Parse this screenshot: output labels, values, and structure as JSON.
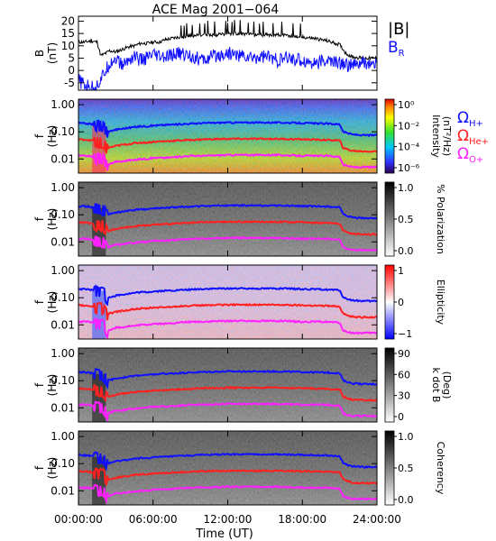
{
  "chart_data": {
    "type": "line",
    "title": "ACE Mag 2001−064",
    "xlabel": "Time (UT)",
    "x_ticks": [
      "00:00:00",
      "06:00:00",
      "12:00:00",
      "18:00:00",
      "24:00:00"
    ],
    "xlim_hours": [
      0,
      24
    ],
    "grid": false,
    "panels": [
      {
        "id": "b",
        "ylabel": [
          "B",
          "(nT)"
        ],
        "yticks": [
          "20",
          "15",
          "10",
          "5",
          "0",
          "-5"
        ],
        "ylim": [
          -8,
          22
        ],
        "legend": [
          {
            "label": "|B|",
            "color": "#000000"
          },
          {
            "label": "B_R",
            "label_main": "B",
            "label_sub": "R",
            "color": "#1010ff"
          }
        ],
        "series": [
          {
            "name": "|B|",
            "color": "#000000",
            "x": [
              0,
              0.5,
              1,
              1.5,
              1.8,
              2.2,
              2.5,
              3,
              3.5,
              4,
              4.5,
              5,
              5.5,
              6,
              6.5,
              7,
              7.5,
              8,
              9,
              10,
              11,
              12,
              13,
              14,
              15,
              16,
              17,
              18,
              19,
              20,
              21,
              21.5,
              22,
              23,
              24
            ],
            "y": [
              11.5,
              11.5,
              12,
              11.5,
              6,
              7,
              8,
              7.5,
              8.5,
              9.5,
              10,
              11,
              11,
              11.5,
              11.5,
              12.5,
              13,
              13.5,
              14,
              14.5,
              14.5,
              15,
              15,
              14.5,
              14.5,
              14.5,
              14,
              13.5,
              13,
              12,
              10.5,
              7,
              5.5,
              5,
              5
            ]
          },
          {
            "name": "B_R",
            "color": "#1010ff",
            "x": [
              0,
              0.5,
              1,
              1.5,
              2,
              2.5,
              3,
              3.5,
              4,
              4.5,
              5,
              5.5,
              6,
              7,
              8,
              9,
              10,
              11,
              12,
              13,
              14,
              15,
              16,
              17,
              18,
              19,
              20,
              21,
              22,
              23,
              24
            ],
            "y": [
              -4,
              -6,
              -7,
              -6,
              -2,
              3,
              5,
              2,
              4,
              6,
              4,
              5,
              6,
              5,
              7,
              6,
              4,
              6,
              7,
              6,
              5,
              6,
              4,
              5,
              4,
              3,
              4,
              3,
              2,
              3,
              2
            ]
          }
        ]
      },
      {
        "id": "intensity",
        "ylabel": [
          "f",
          "(Hz)"
        ],
        "yticks": [
          "1.00",
          "0.10",
          "0.01"
        ],
        "colorbar": {
          "labels": [
            "Intensity",
            "(nT²/Hz)"
          ],
          "ticks": [
            "10⁰",
            "10⁻²",
            "10⁻⁴",
            "10⁻⁶"
          ],
          "scale": "rainbow"
        },
        "legend": [
          {
            "label": "ΩH+",
            "label_main": "Ω",
            "label_sub": "H+",
            "color": "#1010ff"
          },
          {
            "label": "ΩHe+",
            "label_main": "Ω",
            "label_sub": "He+",
            "color": "#ff2020"
          },
          {
            "label": "ΩO+",
            "label_main": "Ω",
            "label_sub": "O+",
            "color": "#ff20ff"
          }
        ]
      },
      {
        "id": "polarization",
        "ylabel": [
          "f",
          "(Hz)"
        ],
        "yticks": [
          "1.00",
          "0.10",
          "0.01"
        ],
        "colorbar": {
          "labels": [
            "% Polarization"
          ],
          "ticks": [
            "1.0",
            "0.5",
            "0.0"
          ],
          "scale": "gray"
        }
      },
      {
        "id": "ellipticity",
        "ylabel": [
          "f",
          "(Hz)"
        ],
        "yticks": [
          "1.00",
          "0.10",
          "0.01"
        ],
        "colorbar": {
          "labels": [
            "Ellipticity"
          ],
          "ticks": [
            "1",
            "0",
            "−1"
          ],
          "scale": "bwr"
        }
      },
      {
        "id": "kdotb",
        "ylabel": [
          "f",
          "(Hz)"
        ],
        "yticks": [
          "1.00",
          "0.10",
          "0.01"
        ],
        "colorbar": {
          "labels": [
            "k dot B",
            "(Deg)"
          ],
          "ticks": [
            "90",
            "60",
            "30",
            "0"
          ],
          "scale": "gray"
        }
      },
      {
        "id": "coherency",
        "ylabel": [
          "f",
          "(Hz)"
        ],
        "yticks": [
          "1.00",
          "0.10",
          "0.01"
        ],
        "colorbar": {
          "labels": [
            "Coherency"
          ],
          "ticks": [
            "1.0",
            "0.5",
            "0.0"
          ],
          "scale": "gray"
        }
      }
    ],
    "gyrofrequency_lines": {
      "x": [
        0,
        0.8,
        1.5,
        2,
        2.3,
        3,
        3.5,
        4,
        4.5,
        5,
        5.5,
        6,
        7,
        8,
        9,
        10,
        12,
        14,
        16,
        18,
        20,
        21,
        21.3,
        22,
        23,
        24
      ],
      "H+": [
        0.21,
        0.2,
        0.18,
        0.17,
        0.1,
        0.12,
        0.13,
        0.14,
        0.15,
        0.16,
        0.16,
        0.17,
        0.18,
        0.19,
        0.2,
        0.21,
        0.22,
        0.22,
        0.22,
        0.21,
        0.2,
        0.19,
        0.1,
        0.08,
        0.075,
        0.075
      ],
      "He+": [
        0.053,
        0.05,
        0.045,
        0.043,
        0.025,
        0.03,
        0.033,
        0.035,
        0.038,
        0.04,
        0.04,
        0.043,
        0.045,
        0.048,
        0.05,
        0.053,
        0.055,
        0.055,
        0.055,
        0.053,
        0.05,
        0.048,
        0.025,
        0.02,
        0.019,
        0.019
      ],
      "O+": [
        0.013,
        0.013,
        0.011,
        0.011,
        0.006,
        0.008,
        0.008,
        0.009,
        0.009,
        0.01,
        0.01,
        0.011,
        0.011,
        0.012,
        0.013,
        0.013,
        0.014,
        0.014,
        0.014,
        0.013,
        0.013,
        0.012,
        0.006,
        0.005,
        0.005,
        0.005
      ]
    }
  }
}
